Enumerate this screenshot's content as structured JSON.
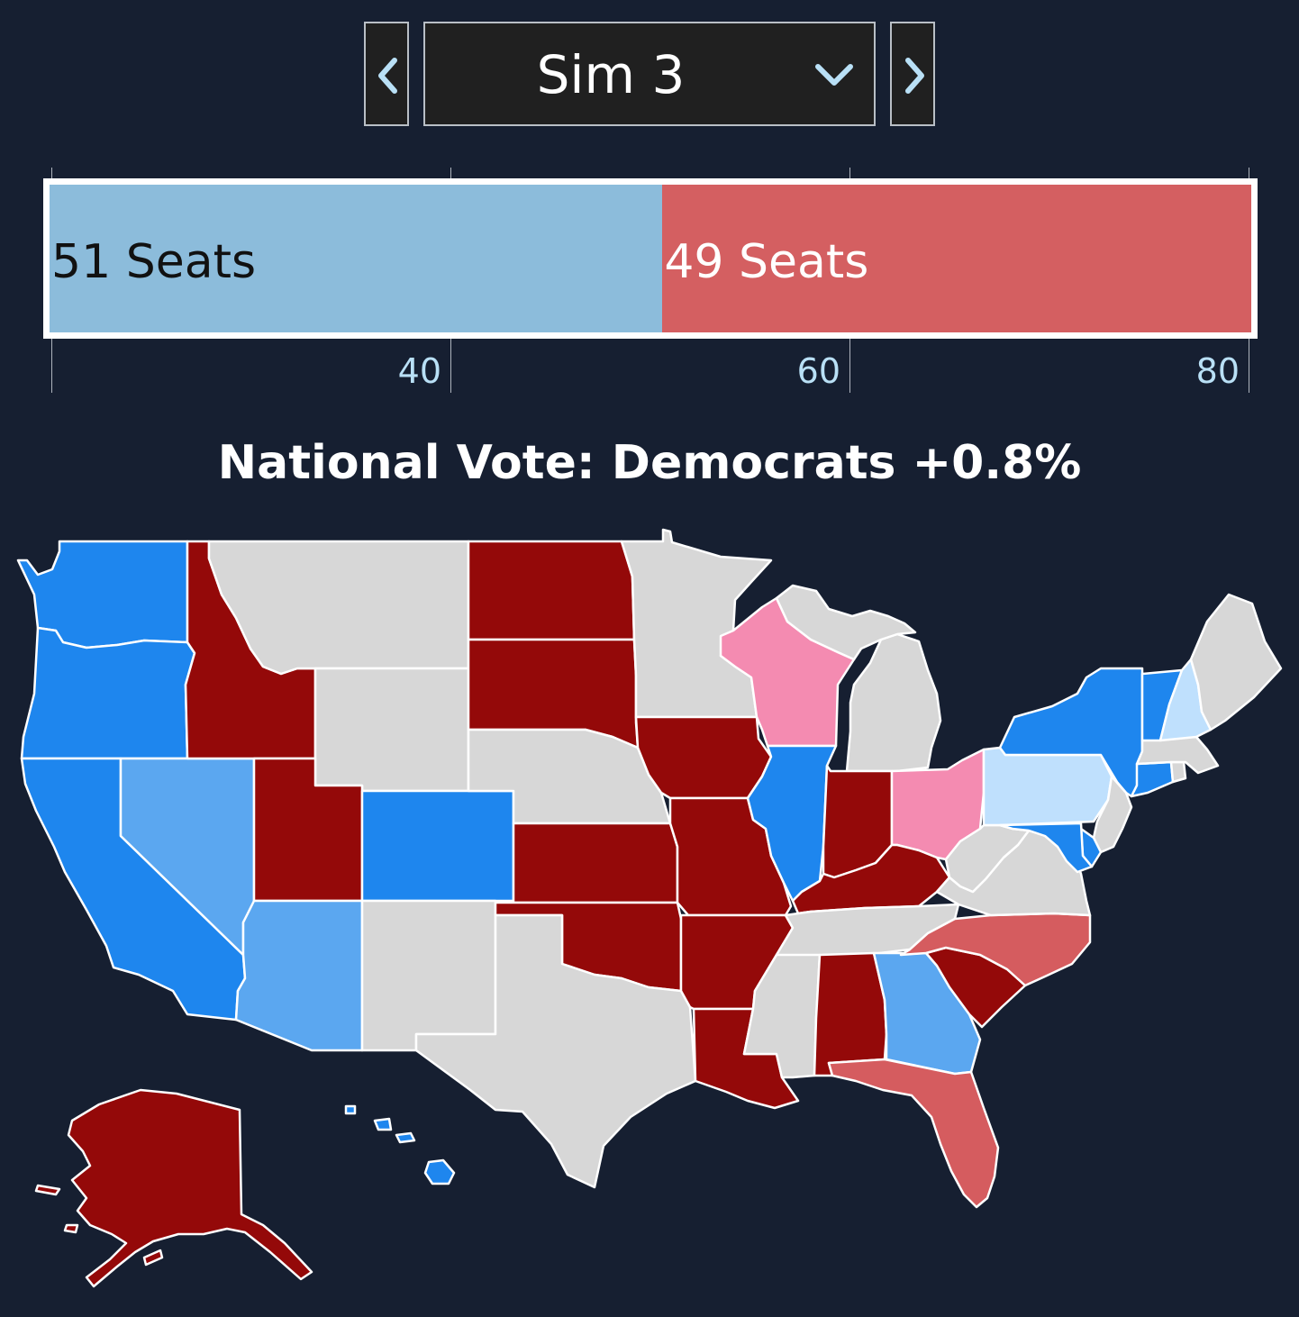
{
  "selector": {
    "current_sim": "Sim 3"
  },
  "seat_bar": {
    "dem_seats": 51,
    "rep_seats": 49,
    "dem_label": "51 Seats",
    "rep_label": "49 Seats",
    "axis_min": 20,
    "axis_max": 80,
    "ticks": [
      "40",
      "60",
      "80"
    ]
  },
  "headline": "National Vote: Democrats +0.8%",
  "colors": {
    "background": "#161f31",
    "control_bg": "#202020",
    "control_border": "#b9bfc6",
    "chevron": "#b9e0f6",
    "bar_dem": "#8cbcdb",
    "bar_rep": "#d45f61",
    "safe_dem": "#1e86ee",
    "lean_dem": "#5ba7f0",
    "tilt_dem": "#bfe0fd",
    "safe_rep": "#940909",
    "lean_rep": "#d55c5f",
    "tilt_rep": "#f48bb1",
    "no_race": "#d7d7d7"
  },
  "map": {
    "states": [
      {
        "id": "WA",
        "rating": "safe_dem"
      },
      {
        "id": "OR",
        "rating": "safe_dem"
      },
      {
        "id": "CA",
        "rating": "safe_dem"
      },
      {
        "id": "NV",
        "rating": "lean_dem"
      },
      {
        "id": "ID",
        "rating": "safe_rep"
      },
      {
        "id": "MT",
        "rating": "no_race"
      },
      {
        "id": "WY",
        "rating": "no_race"
      },
      {
        "id": "UT",
        "rating": "safe_rep"
      },
      {
        "id": "AZ",
        "rating": "lean_dem"
      },
      {
        "id": "CO",
        "rating": "safe_dem"
      },
      {
        "id": "NM",
        "rating": "no_race"
      },
      {
        "id": "ND",
        "rating": "safe_rep"
      },
      {
        "id": "SD",
        "rating": "safe_rep"
      },
      {
        "id": "NE",
        "rating": "no_race"
      },
      {
        "id": "KS",
        "rating": "safe_rep"
      },
      {
        "id": "OK",
        "rating": "safe_rep"
      },
      {
        "id": "TX",
        "rating": "no_race"
      },
      {
        "id": "MN",
        "rating": "no_race"
      },
      {
        "id": "IA",
        "rating": "safe_rep"
      },
      {
        "id": "MO",
        "rating": "safe_rep"
      },
      {
        "id": "AR",
        "rating": "safe_rep"
      },
      {
        "id": "LA",
        "rating": "safe_rep"
      },
      {
        "id": "WI",
        "rating": "tilt_rep"
      },
      {
        "id": "IL",
        "rating": "safe_dem"
      },
      {
        "id": "MI",
        "rating": "no_race"
      },
      {
        "id": "IN",
        "rating": "safe_rep"
      },
      {
        "id": "OH",
        "rating": "tilt_rep"
      },
      {
        "id": "KY",
        "rating": "safe_rep"
      },
      {
        "id": "TN",
        "rating": "no_race"
      },
      {
        "id": "MS",
        "rating": "no_race"
      },
      {
        "id": "AL",
        "rating": "safe_rep"
      },
      {
        "id": "GA",
        "rating": "lean_dem"
      },
      {
        "id": "FL",
        "rating": "lean_rep"
      },
      {
        "id": "SC",
        "rating": "safe_rep"
      },
      {
        "id": "NC",
        "rating": "lean_rep"
      },
      {
        "id": "VA",
        "rating": "no_race"
      },
      {
        "id": "WV",
        "rating": "no_race"
      },
      {
        "id": "PA",
        "rating": "tilt_dem"
      },
      {
        "id": "NY",
        "rating": "safe_dem"
      },
      {
        "id": "NJ",
        "rating": "no_race"
      },
      {
        "id": "DE",
        "rating": "safe_dem"
      },
      {
        "id": "MD",
        "rating": "safe_dem"
      },
      {
        "id": "CT",
        "rating": "safe_dem"
      },
      {
        "id": "RI",
        "rating": "no_race"
      },
      {
        "id": "MA",
        "rating": "no_race"
      },
      {
        "id": "VT",
        "rating": "safe_dem"
      },
      {
        "id": "NH",
        "rating": "tilt_dem"
      },
      {
        "id": "ME",
        "rating": "no_race"
      },
      {
        "id": "AK",
        "rating": "safe_rep"
      },
      {
        "id": "HI",
        "rating": "safe_dem"
      }
    ]
  }
}
